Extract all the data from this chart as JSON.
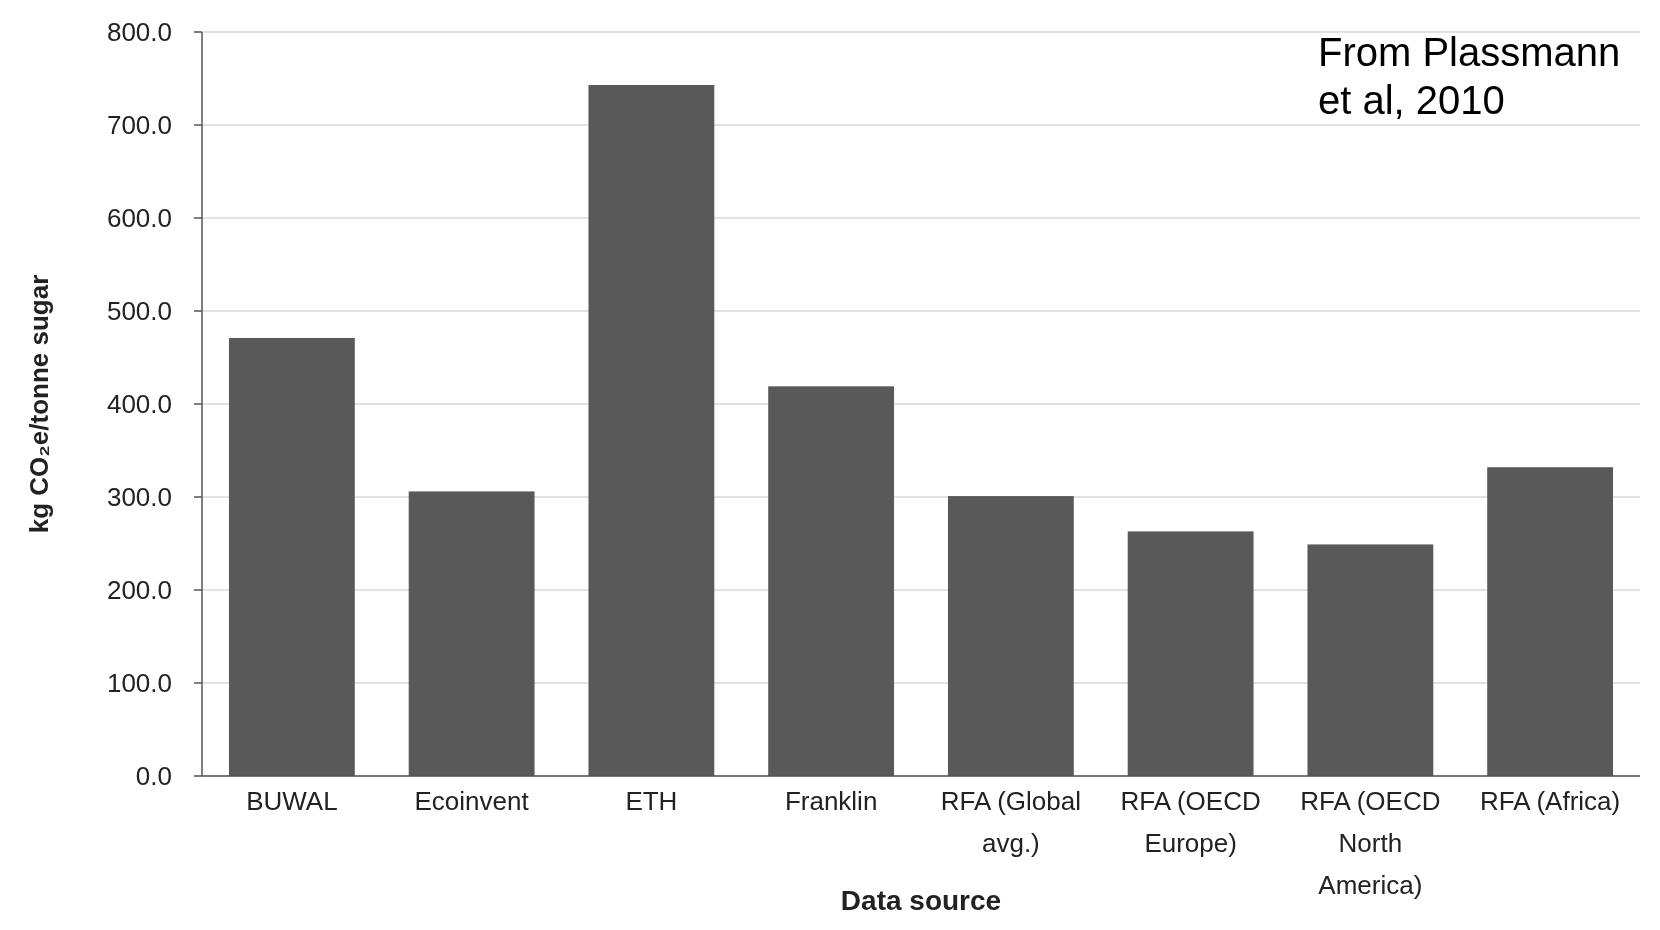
{
  "chart_data": {
    "type": "bar",
    "xlabel": "Data source",
    "ylabel": "kg CO₂e/tonne sugar",
    "categories": [
      "BUWAL",
      "Ecoinvent",
      "ETH",
      "Franklin",
      "RFA (Global avg.)",
      "RFA (OECD Europe)",
      "RFA (OECD North America)",
      "RFA (Africa)"
    ],
    "values": [
      471,
      306,
      743,
      419,
      301,
      263,
      249,
      332
    ],
    "color": "#595959",
    "ylim": [
      0,
      800
    ],
    "yticks": [
      {
        "value": 0,
        "label": "0.0"
      },
      {
        "value": 100,
        "label": "100.0"
      },
      {
        "value": 200,
        "label": "200.0"
      },
      {
        "value": 300,
        "label": "300.0"
      },
      {
        "value": 400,
        "label": "400.0"
      },
      {
        "value": 500,
        "label": "500.0"
      },
      {
        "value": 600,
        "label": "600.0"
      },
      {
        "value": 700,
        "label": "700.0"
      },
      {
        "value": 800,
        "label": "800.0"
      }
    ],
    "grid": "y",
    "annotations": [
      "From Plassmann et al, 2010"
    ]
  }
}
